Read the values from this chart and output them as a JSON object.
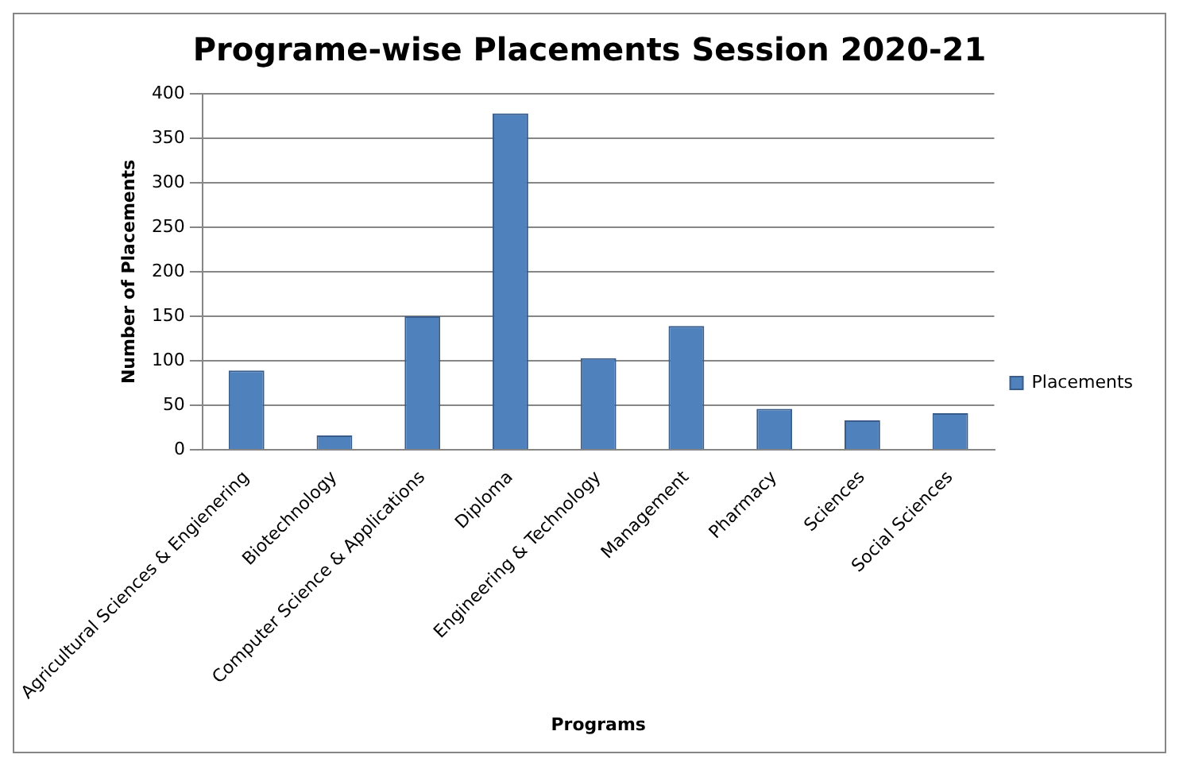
{
  "chart_data": {
    "type": "bar",
    "title": "Programe-wise Placements Session 2020-21",
    "xlabel": "Programs",
    "ylabel": "Number of Placements",
    "categories": [
      "Agricultural Sciences & Engienering",
      "Biotechnology",
      "Computer Science & Applications",
      "Diploma",
      "Engineering & Technology",
      "Management",
      "Pharmacy",
      "Sciences",
      "Social Sciences"
    ],
    "series": [
      {
        "name": "Placements",
        "color": "#4f81bd",
        "values": [
          89,
          16,
          150,
          378,
          103,
          139,
          46,
          33,
          41
        ]
      }
    ],
    "ylim": [
      0,
      400
    ],
    "yticks": [
      0,
      50,
      100,
      150,
      200,
      250,
      300,
      350,
      400
    ],
    "grid": "y",
    "legend": "right"
  }
}
